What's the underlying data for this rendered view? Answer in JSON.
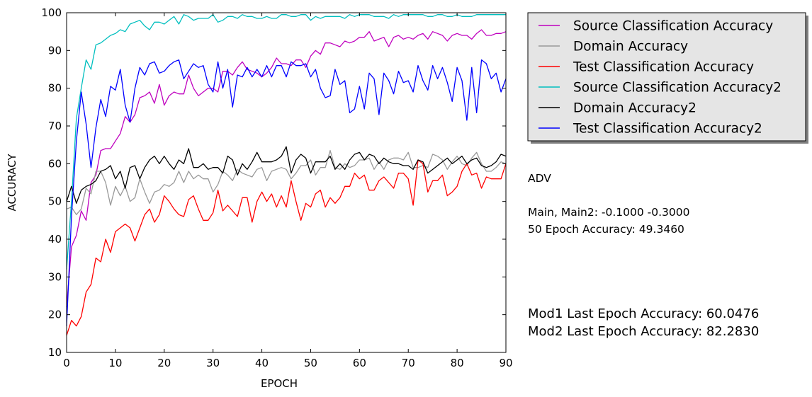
{
  "chart_data": {
    "type": "line",
    "xlabel": "EPOCH",
    "ylabel": "ACCURACY",
    "xlim": [
      0,
      90
    ],
    "ylim": [
      10,
      100
    ],
    "xticks": [
      0,
      10,
      20,
      30,
      40,
      50,
      60,
      70,
      80,
      90
    ],
    "yticks": [
      10,
      20,
      30,
      40,
      50,
      60,
      70,
      80,
      90,
      100
    ],
    "grid": false,
    "legend_position": "outside-top-right",
    "series": [
      {
        "name": "Source Classification Accuracy",
        "color": "#bf00bf",
        "values": [
          22,
          38,
          41,
          47.5,
          45,
          55,
          57,
          63.5,
          64,
          64,
          66,
          68,
          72.5,
          71,
          73,
          77.5,
          78,
          79,
          76,
          81,
          75.5,
          78,
          79,
          78.5,
          78.5,
          83.5,
          80,
          78,
          79,
          80,
          80,
          79,
          84.5,
          84.5,
          83.5,
          85.5,
          87,
          85,
          84.5,
          84,
          83,
          84,
          85.5,
          88,
          86.5,
          86.5,
          86,
          87.5,
          87.5,
          85.5,
          88.5,
          90,
          89,
          92,
          92,
          91.5,
          91,
          92.5,
          92,
          92.5,
          93.5,
          93.5,
          95,
          92.5,
          93,
          93.5,
          91,
          93.5,
          94,
          93,
          93.5,
          93,
          94,
          94.5,
          93,
          95,
          94.5,
          94,
          92.5,
          94,
          94.5,
          94,
          94,
          93,
          94.5,
          95.5,
          94,
          94,
          94.5,
          94.5,
          95
        ]
      },
      {
        "name": "Domain Accuracy",
        "color": "#999999",
        "values": [
          48,
          48.5,
          46.5,
          48,
          53.5,
          52,
          58,
          58,
          55,
          49,
          54,
          51.5,
          54,
          50,
          51,
          56,
          52.5,
          49.5,
          52.5,
          53,
          54.5,
          54,
          55,
          58,
          55,
          58,
          56,
          57,
          56,
          56,
          52.5,
          54.5,
          58,
          57,
          55.5,
          58.5,
          57.5,
          57,
          56.5,
          58.5,
          59,
          55.5,
          58,
          58.5,
          59,
          58.5,
          56,
          57.5,
          59.5,
          59.5,
          61,
          57,
          59,
          59,
          63.5,
          59,
          58.5,
          60,
          59,
          59.5,
          61,
          61,
          61.5,
          58.5,
          60.5,
          58.5,
          61,
          61.5,
          61.5,
          61,
          63,
          59,
          59,
          59.5,
          59,
          62.5,
          62,
          61,
          58.5,
          60.5,
          62,
          60,
          59.5,
          61.5,
          63,
          60,
          58,
          58,
          59,
          60.5,
          60
        ]
      },
      {
        "name": "Test Classification Accuracy",
        "color": "#ff0000",
        "values": [
          14.5,
          18.5,
          17,
          19.5,
          26,
          28,
          35,
          34,
          40,
          36.5,
          42,
          43,
          44,
          43,
          39.5,
          43,
          46.5,
          48,
          44.5,
          46.5,
          51.5,
          50,
          48,
          46.5,
          46,
          50.5,
          51.5,
          48,
          45,
          45,
          47,
          53,
          47.5,
          49,
          47.5,
          46,
          51,
          51,
          44.5,
          50,
          52.5,
          50,
          52,
          48.5,
          51.5,
          48.5,
          55.5,
          50,
          45,
          49.5,
          48.5,
          52,
          53,
          48.5,
          51,
          49.5,
          51,
          54,
          54,
          57.5,
          56,
          57,
          53,
          53,
          55.5,
          56.5,
          55,
          53.5,
          57.5,
          57.5,
          56,
          49,
          61,
          60,
          52.5,
          55.5,
          55.5,
          57,
          51.5,
          52.5,
          54,
          58,
          60,
          57,
          57.5,
          53.5,
          56.5,
          56,
          56,
          56,
          60
        ]
      },
      {
        "name": "Source Classification Accuracy2",
        "color": "#00bfbf",
        "values": [
          32,
          50,
          72,
          80,
          87.5,
          85,
          91.5,
          92,
          93,
          94,
          94.5,
          95.5,
          95,
          97,
          97.5,
          98,
          96.5,
          95.5,
          97.5,
          97.5,
          97,
          98,
          99,
          97,
          99.5,
          99,
          98,
          98.5,
          98.5,
          98.5,
          99.5,
          97.5,
          98,
          99,
          99,
          98.5,
          99.5,
          99,
          99,
          98.5,
          98.5,
          99,
          98.5,
          98.5,
          99.5,
          99.5,
          99,
          99,
          99.5,
          99.5,
          98,
          99,
          98.5,
          99,
          99,
          99,
          99,
          98.5,
          99.5,
          99,
          99.5,
          99.5,
          99.5,
          99,
          99,
          99,
          98.5,
          99.5,
          99,
          99.5,
          99.5,
          99.5,
          99.5,
          99.5,
          99,
          99,
          99.5,
          99.5,
          99,
          99,
          99.5,
          99,
          99,
          99,
          99.5,
          99.5,
          99.5,
          99.5,
          99.5,
          99.5,
          99.5
        ]
      },
      {
        "name": "Domain Accuracy2",
        "color": "#000000",
        "values": [
          50,
          54,
          49.5,
          53,
          54,
          54.5,
          55.5,
          58,
          58.5,
          59.5,
          56,
          58,
          53.5,
          59,
          59.5,
          56,
          59,
          61,
          62,
          60,
          62,
          60,
          58.5,
          61,
          60,
          64,
          59,
          59,
          60,
          58.5,
          59,
          59,
          57.5,
          62,
          61,
          57,
          60,
          58.5,
          60.5,
          63,
          60.5,
          60.5,
          60.5,
          61,
          62,
          64.5,
          57.5,
          61,
          62.5,
          61.5,
          57.5,
          60.5,
          60.5,
          60.5,
          62,
          58.5,
          60,
          58.5,
          61,
          62.5,
          63,
          61,
          62.5,
          62,
          60,
          61.5,
          60.5,
          60,
          60,
          59.5,
          59.5,
          58.5,
          61,
          60.5,
          57.5,
          58.5,
          59.5,
          60.5,
          61.5,
          60,
          61,
          62,
          60,
          61,
          61.5,
          59.5,
          59,
          59.5,
          60.5,
          62.5,
          62
        ]
      },
      {
        "name": "Test Classification Accuracy2",
        "color": "#0000ff",
        "values": [
          17,
          46,
          66,
          79,
          70.5,
          59,
          69.5,
          77,
          72.5,
          80.5,
          79.5,
          85,
          75.5,
          71,
          80,
          85.5,
          83.5,
          86.5,
          87,
          84,
          84.5,
          86,
          87,
          87.5,
          82.5,
          84.5,
          86.5,
          85.5,
          86,
          81,
          79,
          87,
          80,
          85,
          75,
          83.5,
          83,
          85.5,
          83,
          85,
          83,
          86,
          83,
          86,
          86,
          83,
          87,
          86,
          86,
          86.5,
          83,
          85,
          80,
          77.5,
          78,
          85,
          81,
          82,
          73.5,
          74.5,
          80.5,
          74.5,
          84,
          82.5,
          73,
          84,
          82,
          78.5,
          84.5,
          81.5,
          82,
          79,
          86,
          82,
          79.5,
          86,
          82.5,
          85.5,
          81.5,
          76.5,
          85.5,
          82,
          71.5,
          85.5,
          73.5,
          87.5,
          86.5,
          82.5,
          84,
          79,
          82.5
        ]
      }
    ]
  },
  "notes": {
    "tag": "ADV",
    "main_line": "Main, Main2: -0.1000 -0.3000",
    "epoch_line": "50 Epoch Accuracy: 49.3460",
    "mod1_line": "Mod1 Last Epoch Accuracy: 60.0476",
    "mod2_line": "Mod2 Last Epoch Accuracy: 82.2830"
  }
}
